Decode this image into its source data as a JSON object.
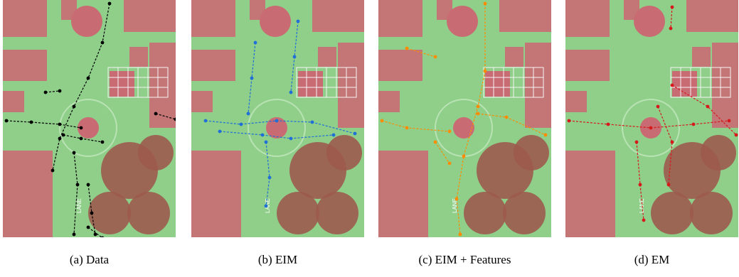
{
  "panels": [
    {
      "caption": "(a) Data",
      "trajectory_color": "#000000"
    },
    {
      "caption": "(b) EIM",
      "trajectory_color": "#1f6fd6"
    },
    {
      "caption": "(c) EIM + Features",
      "trajectory_color": "#ff8c00"
    },
    {
      "caption": "(d) EM",
      "trajectory_color": "#d7191c"
    }
  ],
  "scene": {
    "road_color": "#8fcf8a",
    "building_color": "#c96b72",
    "tree_color": "#9c5a4c",
    "road_marking": "LANE"
  }
}
